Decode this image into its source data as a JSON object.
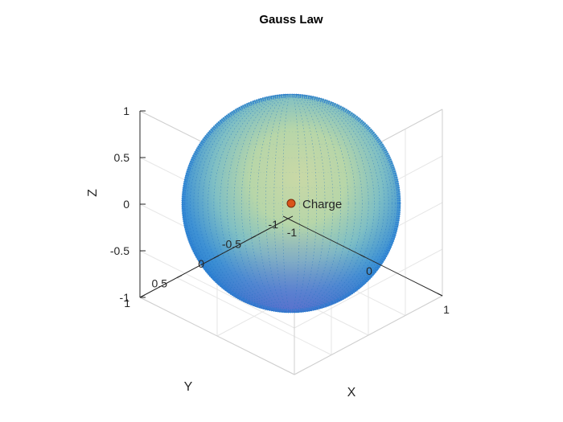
{
  "chart_data": {
    "type": "scatter3d",
    "title": "Gauss Law",
    "xlabel": "X",
    "ylabel": "Y",
    "zlabel": "Z",
    "xlim": [
      -1,
      1
    ],
    "ylim": [
      -1,
      1
    ],
    "zlim": [
      -1,
      1
    ],
    "x_ticks": [
      "-1",
      "0",
      "1"
    ],
    "y_ticks": [
      "-1",
      "-0.5",
      "0",
      "0.5",
      "1"
    ],
    "z_ticks": [
      "-1",
      "-0.5",
      "0",
      "0.5",
      "1"
    ],
    "grid": true,
    "colormap": "parula",
    "sphere": {
      "center": [
        0,
        0,
        0
      ],
      "radius": 1,
      "description": "quiver arrows on unit sphere surface"
    },
    "charge": {
      "position": [
        0,
        0,
        0
      ],
      "label": "Charge",
      "color": "#d95319"
    }
  }
}
